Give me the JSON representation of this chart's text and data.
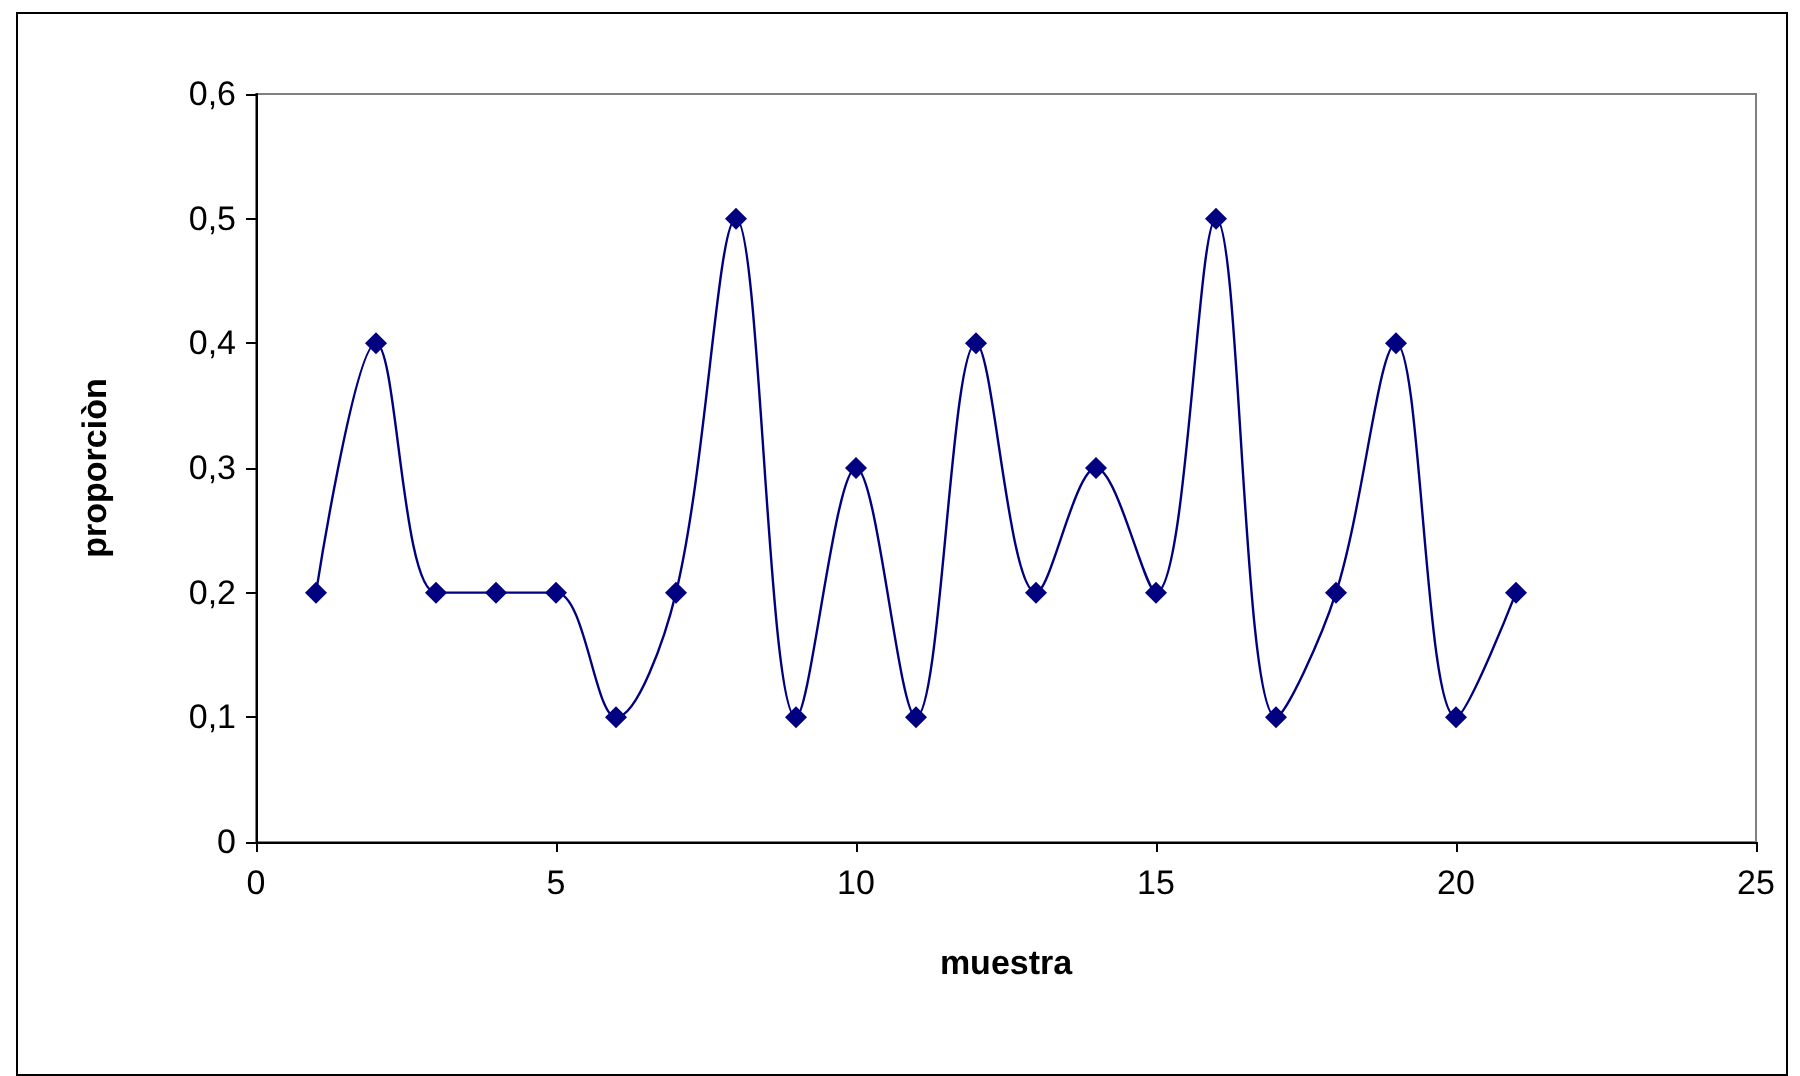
{
  "chart_data": {
    "type": "line",
    "xlabel": "muestra",
    "ylabel": "proporciòn",
    "x": [
      1,
      2,
      3,
      4,
      5,
      6,
      7,
      8,
      9,
      10,
      11,
      12,
      13,
      14,
      15,
      16,
      17,
      18,
      19,
      20,
      21
    ],
    "series": [
      {
        "color": "#000080",
        "values": [
          0.2,
          0.4,
          0.2,
          0.2,
          0.2,
          0.1,
          0.2,
          0.5,
          0.1,
          0.3,
          0.1,
          0.4,
          0.2,
          0.3,
          0.2,
          0.5,
          0.1,
          0.2,
          0.4,
          0.1,
          0.2
        ]
      }
    ],
    "xlim": [
      0,
      25
    ],
    "xticks": [
      0,
      5,
      10,
      15,
      20,
      25
    ],
    "ylim": [
      0,
      0.6
    ],
    "yticks": [
      0,
      {
        "value": 0.1,
        "label": "0,1"
      },
      {
        "value": 0.2,
        "label": "0,2"
      },
      {
        "value": 0.3,
        "label": "0,3"
      },
      {
        "value": 0.4,
        "label": "0,4"
      },
      {
        "value": 0.5,
        "label": "0,5"
      },
      {
        "value": 0.6,
        "label": "0,6"
      }
    ],
    "grid": false,
    "marker": "diamond",
    "line_style": "solid"
  }
}
